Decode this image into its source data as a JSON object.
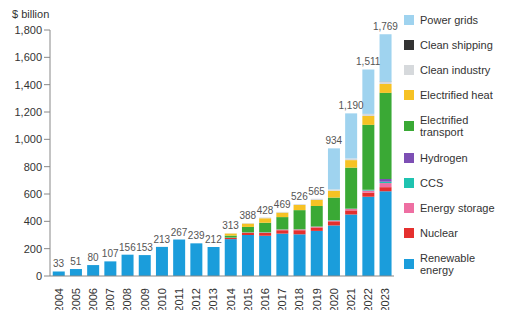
{
  "chart_data": {
    "type": "bar",
    "stacked": true,
    "y_label": "$ billion",
    "legend": "right",
    "grid": false,
    "data_labels": true,
    "categories": [
      "2004",
      "2005",
      "2006",
      "2007",
      "2008",
      "2009",
      "2010",
      "2011",
      "2012",
      "2013",
      "2014",
      "2015",
      "2016",
      "2017",
      "2018",
      "2019",
      "2020",
      "2021",
      "2022",
      "2023"
    ],
    "ylim": [
      0,
      1800
    ],
    "yticks": [
      0,
      200,
      400,
      600,
      800,
      {
        "value": 1000,
        "label": "1,000"
      },
      {
        "value": 1200,
        "label": "1,200"
      },
      {
        "value": 1400,
        "label": "1,400"
      },
      {
        "value": 1600,
        "label": "1,600"
      },
      {
        "value": 1800,
        "label": "1,800"
      }
    ],
    "totals": [
      33,
      51,
      80,
      107,
      156,
      153,
      213,
      267,
      239,
      212,
      313,
      388,
      428,
      469,
      526,
      565,
      934,
      1190,
      1511,
      1769
    ],
    "total_labels": [
      "33",
      "51",
      "80",
      "107",
      "156",
      "153",
      "213",
      "267",
      "239",
      "212",
      "313",
      "388",
      "428",
      "469",
      "526",
      "565",
      "934",
      "1,190",
      "1,511",
      "1,769"
    ],
    "series": [
      {
        "name": "Renewable energy",
        "color": "#1b9ddb",
        "values": [
          33,
          51,
          80,
          107,
          156,
          153,
          213,
          267,
          239,
          212,
          270,
          300,
          295,
          310,
          305,
          330,
          370,
          450,
          580,
          620
        ]
      },
      {
        "name": "Nuclear",
        "color": "#e5302e",
        "values": [
          0,
          0,
          0,
          0,
          0,
          0,
          0,
          0,
          0,
          0,
          8,
          15,
          20,
          25,
          30,
          25,
          30,
          30,
          30,
          30
        ]
      },
      {
        "name": "Energy storage",
        "color": "#ee6fa2",
        "values": [
          0,
          0,
          0,
          0,
          0,
          0,
          0,
          0,
          0,
          0,
          2,
          3,
          4,
          5,
          6,
          6,
          5,
          10,
          15,
          30
        ]
      },
      {
        "name": "CCS",
        "color": "#1fc3b0",
        "values": [
          0,
          0,
          0,
          0,
          0,
          0,
          0,
          0,
          0,
          0,
          1,
          1,
          1,
          1,
          1,
          1,
          3,
          2,
          5,
          10
        ]
      },
      {
        "name": "Hydrogen",
        "color": "#7d4fb4",
        "values": [
          0,
          0,
          0,
          0,
          0,
          0,
          0,
          0,
          0,
          0,
          0,
          0,
          0,
          0,
          0,
          0,
          1,
          1,
          1,
          20
        ]
      },
      {
        "name": "Electrified transport",
        "color": "#3aa935",
        "values": [
          0,
          0,
          0,
          0,
          0,
          0,
          0,
          0,
          0,
          0,
          15,
          40,
          70,
          90,
          140,
          150,
          165,
          300,
          475,
          630
        ]
      },
      {
        "name": "Electrified heat",
        "color": "#f6c224",
        "values": [
          0,
          0,
          0,
          0,
          0,
          0,
          0,
          0,
          0,
          0,
          15,
          25,
          33,
          33,
          38,
          45,
          50,
          55,
          65,
          65
        ]
      },
      {
        "name": "Clean industry",
        "color": "#d6d9dc",
        "values": [
          0,
          0,
          0,
          0,
          0,
          0,
          0,
          0,
          0,
          0,
          2,
          4,
          5,
          5,
          6,
          8,
          10,
          12,
          15,
          15
        ]
      },
      {
        "name": "Clean shipping",
        "color": "#333333",
        "values": [
          0,
          0,
          0,
          0,
          0,
          0,
          0,
          0,
          0,
          0,
          0,
          0,
          0,
          0,
          0,
          0,
          0,
          0,
          0,
          2
        ]
      },
      {
        "name": "Power grids",
        "color": "#9fd3ef",
        "values": [
          0,
          0,
          0,
          0,
          0,
          0,
          0,
          0,
          0,
          0,
          0,
          0,
          0,
          0,
          0,
          0,
          300,
          330,
          325,
          347
        ]
      }
    ]
  }
}
